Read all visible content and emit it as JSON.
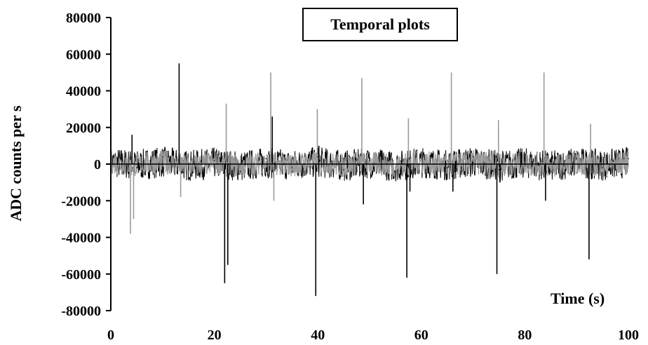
{
  "chart_data": {
    "type": "line",
    "title": "Temporal plots",
    "xlabel": "Time (s)",
    "ylabel": "ADC counts  per s",
    "xlim": [
      0,
      100
    ],
    "ylim": [
      -80000,
      80000
    ],
    "x_ticks": [
      "0",
      "20",
      "40",
      "60",
      "80",
      "100"
    ],
    "y_ticks": [
      "80000",
      "60000",
      "40000",
      "20000",
      "0",
      "-20000",
      "-40000",
      "-60000",
      "-80000"
    ],
    "grid": false,
    "colors": {
      "series_dark": "#000000",
      "series_light": "#9a9a9a"
    },
    "series": [
      {
        "x": [
          3.8,
          4.1,
          4.4,
          13.2,
          13.5,
          22.0,
          22.3,
          22.6,
          30.9,
          31.2,
          31.5,
          39.6,
          39.9,
          40.2,
          48.5,
          48.8,
          49.1,
          57.2,
          57.5,
          57.8,
          65.8,
          66.1,
          66.4,
          74.6,
          74.9,
          75.2,
          83.7,
          84.0,
          84.3,
          92.4,
          92.7,
          93.0
        ],
        "values": [
          -38000,
          16000,
          -30000,
          55000,
          -18000,
          -65000,
          33000,
          -55000,
          50000,
          26000,
          -20000,
          -72000,
          30000,
          10000,
          47000,
          -22000,
          5000,
          -62000,
          25000,
          -15000,
          50000,
          -15000,
          5000,
          -60000,
          24000,
          -10000,
          50000,
          -20000,
          5000,
          -52000,
          22000,
          -8000
        ]
      },
      {
        "x": [
          0,
          5,
          10,
          15,
          20,
          25,
          30,
          35,
          40,
          45,
          50,
          55,
          60,
          65,
          70,
          75,
          80,
          85,
          90,
          95,
          100
        ],
        "values": [
          3000,
          -2000,
          4000,
          -3000,
          2000,
          -4000,
          3000,
          -2000,
          4000,
          -3000,
          2000,
          -4000,
          3000,
          -2000,
          4000,
          -3000,
          2000,
          -4000,
          3000,
          -2000,
          3000
        ]
      }
    ]
  }
}
